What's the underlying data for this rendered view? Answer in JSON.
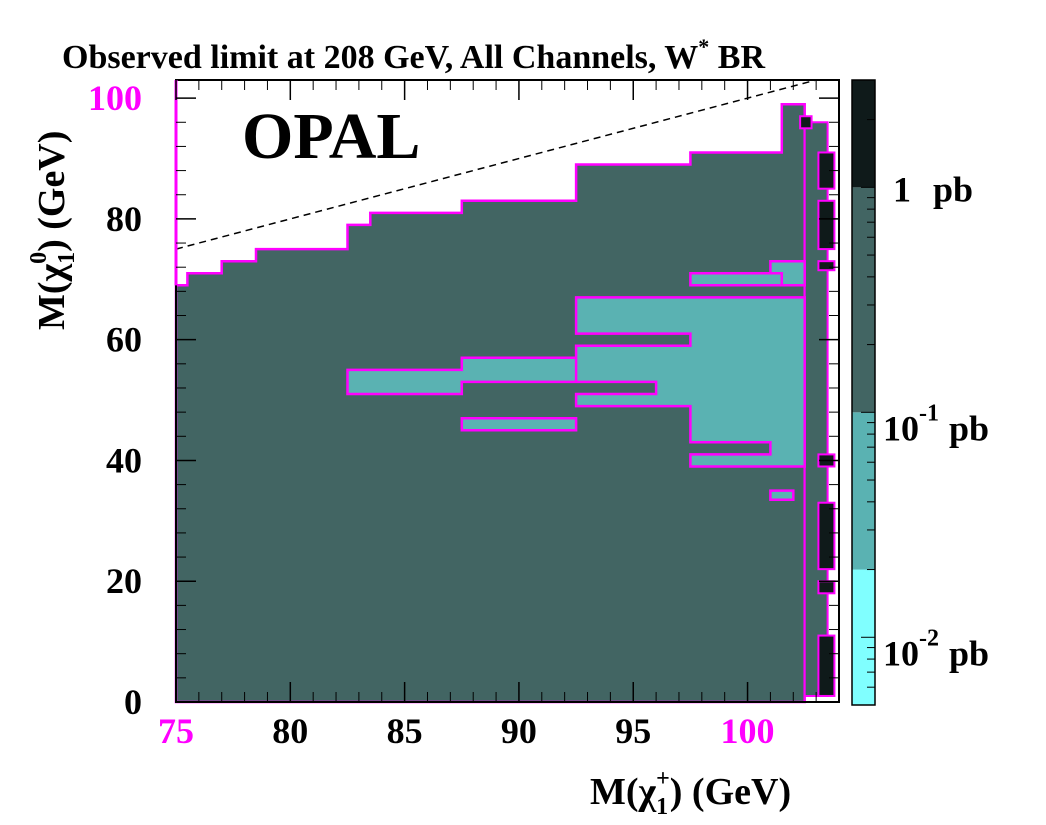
{
  "chart_data": {
    "type": "heatmap",
    "title": "Observed limit at 208 GeV, All Channels, W",
    "title_sup": "*",
    "title_tail": " BR",
    "experiment_label": "OPAL",
    "xlabel": "M(χ",
    "xlabel_sub": "1",
    "xlabel_sup": "+",
    "xlabel_tail": ") (GeV)",
    "ylabel": "M(χ",
    "ylabel_sub": "1",
    "ylabel_sup": "0",
    "ylabel_tail": ") (GeV)",
    "xlim": [
      75,
      104
    ],
    "ylim": [
      0,
      103
    ],
    "xticks": [
      {
        "value": 75,
        "label": "75",
        "color": "#ff00ff"
      },
      {
        "value": 80,
        "label": "80",
        "color": "#000000"
      },
      {
        "value": 85,
        "label": "85",
        "color": "#000000"
      },
      {
        "value": 90,
        "label": "90",
        "color": "#000000"
      },
      {
        "value": 95,
        "label": "95",
        "color": "#000000"
      },
      {
        "value": 100,
        "label": "100",
        "color": "#ff00ff"
      }
    ],
    "yticks": [
      {
        "value": 0,
        "label": "0",
        "color": "#000000"
      },
      {
        "value": 20,
        "label": "20",
        "color": "#000000"
      },
      {
        "value": 40,
        "label": "40",
        "color": "#000000"
      },
      {
        "value": 60,
        "label": "60",
        "color": "#000000"
      },
      {
        "value": 80,
        "label": "80",
        "color": "#000000"
      },
      {
        "value": 100,
        "label": "100",
        "color": "#ff00ff"
      }
    ],
    "diagonal": {
      "x": [
        75,
        103
      ],
      "y": [
        75,
        103
      ]
    },
    "colors": {
      "boundary": "#ff00ff",
      "level_01_to_1": "#426563",
      "level_001_to_01": "#5ab2b2",
      "level_above_1": "#0f1a1a",
      "level_below_001": "#80ffff"
    },
    "region_main": {
      "level": "0.1-1 pb",
      "polygon": [
        [
          75,
          0
        ],
        [
          102.5,
          0
        ],
        [
          102.5,
          99
        ],
        [
          101.5,
          99
        ],
        [
          101.5,
          91
        ],
        [
          97.5,
          91
        ],
        [
          97.5,
          89
        ],
        [
          92.5,
          89
        ],
        [
          92.5,
          83
        ],
        [
          87.5,
          83
        ],
        [
          87.5,
          81
        ],
        [
          83.5,
          81
        ],
        [
          83.5,
          79
        ],
        [
          82.5,
          79
        ],
        [
          82.5,
          75
        ],
        [
          78.5,
          75
        ],
        [
          78.5,
          73
        ],
        [
          77,
          73
        ],
        [
          77,
          71
        ],
        [
          75.5,
          71
        ],
        [
          75.5,
          69
        ],
        [
          75,
          69
        ]
      ]
    },
    "region_strip": {
      "level": "0.1-1 pb",
      "polygon": [
        [
          102.5,
          1
        ],
        [
          103.5,
          1
        ],
        [
          103.5,
          96
        ],
        [
          102.5,
          96
        ]
      ]
    },
    "regions_low": [
      {
        "level": "0.01-0.1 pb",
        "polygon": [
          [
            92.5,
            67
          ],
          [
            102.5,
            67
          ],
          [
            102.5,
            39
          ],
          [
            97.5,
            39
          ],
          [
            97.5,
            41
          ],
          [
            101,
            41
          ],
          [
            101,
            43
          ],
          [
            97.5,
            43
          ],
          [
            97.5,
            49
          ],
          [
            92.5,
            49
          ],
          [
            92.5,
            51
          ],
          [
            96,
            51
          ],
          [
            96,
            53
          ],
          [
            92.5,
            53
          ],
          [
            92.5,
            57
          ],
          [
            87.5,
            57
          ],
          [
            87.5,
            55
          ],
          [
            82.5,
            55
          ],
          [
            82.5,
            51
          ],
          [
            87.5,
            51
          ],
          [
            87.5,
            53
          ],
          [
            92.5,
            53
          ],
          [
            92.5,
            59
          ],
          [
            97.5,
            59
          ],
          [
            97.5,
            61
          ],
          [
            92.5,
            61
          ]
        ]
      },
      {
        "level": "0.01-0.1 pb",
        "polygon": [
          [
            97.5,
            71
          ],
          [
            101.5,
            71
          ],
          [
            101.5,
            69
          ],
          [
            97.5,
            69
          ]
        ]
      },
      {
        "level": "0.01-0.1 pb",
        "polygon": [
          [
            101,
            73
          ],
          [
            102.5,
            73
          ],
          [
            102.5,
            69
          ],
          [
            101.5,
            69
          ],
          [
            101.5,
            71
          ],
          [
            101,
            71
          ]
        ]
      },
      {
        "level": "0.01-0.1 pb",
        "polygon": [
          [
            87.5,
            47
          ],
          [
            92.5,
            47
          ],
          [
            92.5,
            45
          ],
          [
            87.5,
            45
          ]
        ]
      },
      {
        "level": "0.01-0.1 pb",
        "polygon": [
          [
            101,
            35
          ],
          [
            102,
            35
          ],
          [
            102,
            33.5
          ],
          [
            101,
            33.5
          ]
        ]
      }
    ],
    "cells_high": [
      {
        "level": ">1 pb",
        "x0": 103.1,
        "x1": 103.8,
        "y0": 1,
        "y1": 11
      },
      {
        "level": ">1 pb",
        "x0": 103.1,
        "x1": 103.8,
        "y0": 18,
        "y1": 20
      },
      {
        "level": ">1 pb",
        "x0": 103.1,
        "x1": 103.8,
        "y0": 22,
        "y1": 33
      },
      {
        "level": ">1 pb",
        "x0": 103.1,
        "x1": 103.8,
        "y0": 39,
        "y1": 41
      },
      {
        "level": ">1 pb",
        "x0": 103.1,
        "x1": 103.8,
        "y0": 71.5,
        "y1": 73
      },
      {
        "level": ">1 pb",
        "x0": 103.1,
        "x1": 103.8,
        "y0": 75,
        "y1": 83
      },
      {
        "level": ">1 pb",
        "x0": 103.1,
        "x1": 103.8,
        "y0": 85,
        "y1": 91
      },
      {
        "level": ">1 pb",
        "x0": 102.3,
        "x1": 102.8,
        "y0": 95,
        "y1": 97
      }
    ],
    "colorbar": {
      "scale": "log",
      "range": [
        0.005,
        3
      ],
      "bands": [
        {
          "from": 0.005,
          "to": 0.02,
          "color": "#80ffff"
        },
        {
          "from": 0.02,
          "to": 0.1,
          "color": "#5ab2b2"
        },
        {
          "from": 0.1,
          "to": 1,
          "color": "#426563"
        },
        {
          "from": 1,
          "to": 3,
          "color": "#0f1a1a"
        }
      ],
      "labels": [
        {
          "value": 1,
          "base": "1",
          "exp": "",
          "unit": "pb"
        },
        {
          "value": 0.1,
          "base": "10",
          "exp": "-1",
          "unit": "pb"
        },
        {
          "value": 0.01,
          "base": "10",
          "exp": "-2",
          "unit": "pb"
        }
      ]
    }
  }
}
